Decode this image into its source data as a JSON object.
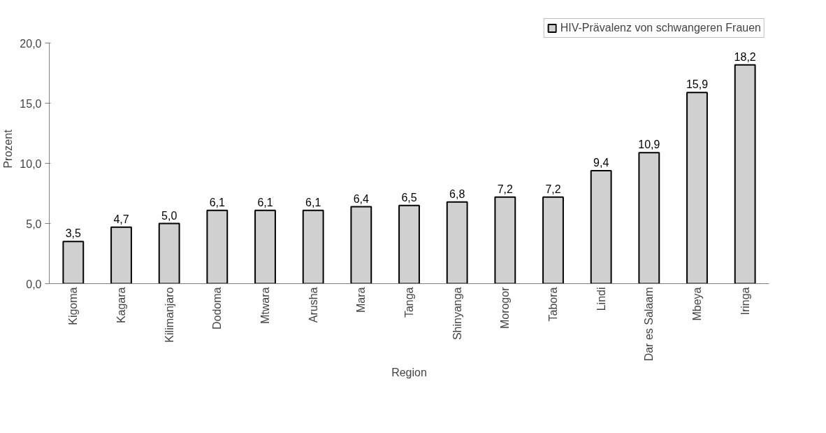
{
  "chart_data": {
    "type": "bar",
    "xlabel": "Region",
    "ylabel": "Prozent",
    "categories": [
      "Kigoma",
      "Kagara",
      "Kilimanjaro",
      "Dodoma",
      "Mtwara",
      "Arusha",
      "Mara",
      "Tanga",
      "Shinyanga",
      "Morogor",
      "Tabora",
      "Lindi",
      "Dar es Salaam",
      "Mbeya",
      "Iringa"
    ],
    "series": [
      {
        "name": "HIV-Prävalenz von schwangeren Frauen",
        "color": "#d0d0d0",
        "values": [
          3.5,
          4.7,
          5.0,
          6.1,
          6.1,
          6.1,
          6.4,
          6.5,
          6.8,
          7.2,
          7.2,
          9.4,
          10.9,
          15.9,
          18.2
        ],
        "value_labels": [
          "3,5",
          "4,7",
          "5,0",
          "6,1",
          "6,1",
          "6,1",
          "6,4",
          "6,5",
          "6,8",
          "7,2",
          "7,2",
          "9,4",
          "10,9",
          "15,9",
          "18,2"
        ]
      }
    ],
    "ylim": [
      0,
      20
    ],
    "yticks": [
      {
        "value": 0,
        "label": "0,0"
      },
      {
        "value": 5,
        "label": "5,0"
      },
      {
        "value": 10,
        "label": "10,0"
      },
      {
        "value": 15,
        "label": "15,0"
      },
      {
        "value": 20,
        "label": "20,0"
      }
    ],
    "grid": false,
    "legend": "top right"
  }
}
